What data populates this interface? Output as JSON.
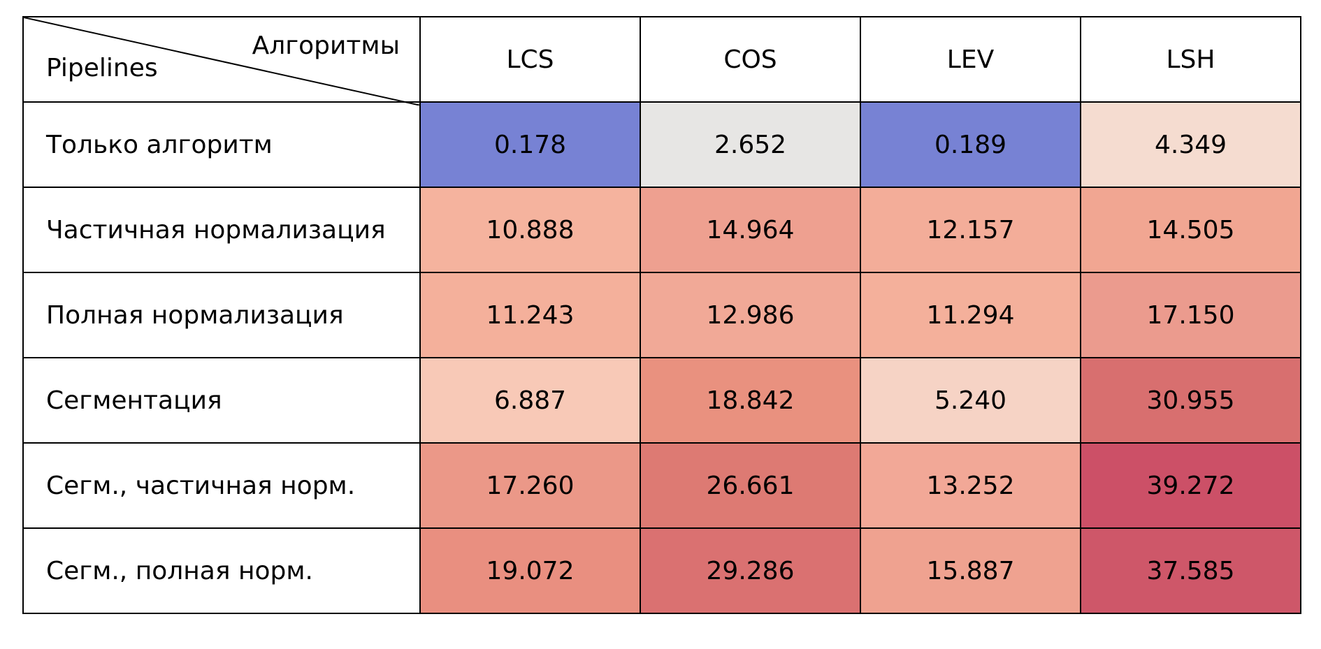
{
  "chart_data": {
    "type": "heatmap",
    "corner": {
      "column_axis_label": "Алгоритмы",
      "row_axis_label": "Pipelines"
    },
    "columns": [
      "LCS",
      "COS",
      "LEV",
      "LSH"
    ],
    "rows": [
      {
        "label": "Только алгоритм",
        "values": [
          "0.178",
          "2.652",
          "0.189",
          "4.349"
        ]
      },
      {
        "label": "Частичная нормализация",
        "values": [
          "10.888",
          "14.964",
          "12.157",
          "14.505"
        ]
      },
      {
        "label": "Полная нормализация",
        "values": [
          "11.243",
          "12.986",
          "11.294",
          "17.150"
        ]
      },
      {
        "label": "Сегментация",
        "values": [
          "6.887",
          "18.842",
          "5.240",
          "30.955"
        ]
      },
      {
        "label": "Сегм., частичная норм.",
        "values": [
          "17.260",
          "26.661",
          "13.252",
          "39.272"
        ]
      },
      {
        "label": "Сегм., полная норм.",
        "values": [
          "19.072",
          "29.286",
          "15.887",
          "37.585"
        ]
      }
    ],
    "colormap": "coolwarm",
    "colors": [
      [
        "#7782d4",
        "#e7e6e4",
        "#7782d4",
        "#f5dcd0"
      ],
      [
        "#f5b39e",
        "#eea090",
        "#f3ad99",
        "#f1a692"
      ],
      [
        "#f4b09b",
        "#f1a997",
        "#f4b09b",
        "#eb9b8e"
      ],
      [
        "#f8c9b7",
        "#e9917f",
        "#f6d3c5",
        "#d86f6f"
      ],
      [
        "#eb9888",
        "#dd7a73",
        "#f2a897",
        "#cc5067"
      ],
      [
        "#e98f80",
        "#da7171",
        "#efa290",
        "#ce5769"
      ]
    ]
  }
}
